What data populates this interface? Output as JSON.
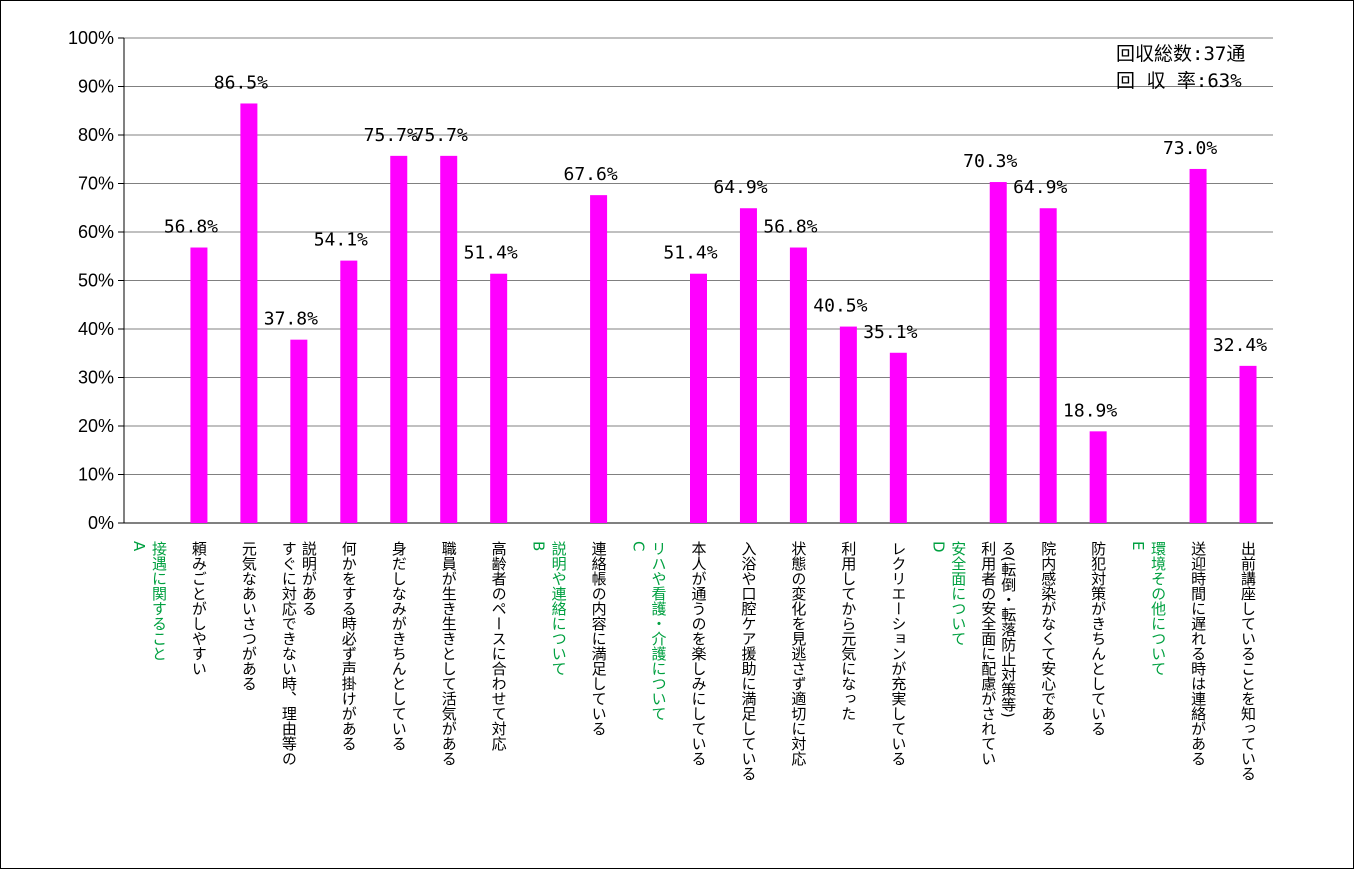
{
  "chart_data": {
    "type": "bar",
    "ylim": [
      0,
      100
    ],
    "yticks": [
      "0%",
      "10%",
      "20%",
      "30%",
      "40%",
      "50%",
      "60%",
      "70%",
      "80%",
      "90%",
      "100%"
    ],
    "grid": true,
    "bar_color": "#FF00FF",
    "section_label_color": "#00A040",
    "notes": [
      "回収総数:37通",
      "回 収 率:63%"
    ],
    "categories": [
      {
        "label": [
          "A",
          "接遇に関すること"
        ],
        "value": null,
        "data_label": "",
        "section": true
      },
      {
        "label": [
          "頼みごとがしやすい"
        ],
        "value": 56.8,
        "data_label": "56.8%"
      },
      {
        "label": [
          "元気なあいさつがある"
        ],
        "value": 86.5,
        "data_label": "86.5%"
      },
      {
        "label": [
          "すぐに対応できない時、理由等の",
          "説明がある"
        ],
        "value": 37.8,
        "data_label": "37.8%"
      },
      {
        "label": [
          "何かをする時必ず声掛けがある"
        ],
        "value": 54.1,
        "data_label": "54.1%"
      },
      {
        "label": [
          "身だしなみがきちんとしている"
        ],
        "value": 75.7,
        "data_label": "75.7%"
      },
      {
        "label": [
          "職員が生き生きとして活気がある"
        ],
        "value": 75.7,
        "data_label": "75.7%"
      },
      {
        "label": [
          "高齢者のペースに合わせて対応"
        ],
        "value": 51.4,
        "data_label": "51.4%"
      },
      {
        "label": [
          "B",
          "説明や連絡について"
        ],
        "value": null,
        "data_label": "",
        "section": true
      },
      {
        "label": [
          "連絡帳の内容に満足している"
        ],
        "value": 67.6,
        "data_label": "67.6%"
      },
      {
        "label": [
          "C",
          "リハや看護・介護について"
        ],
        "value": null,
        "data_label": "",
        "section": true
      },
      {
        "label": [
          "本人が通うのを楽しみにしている"
        ],
        "value": 51.4,
        "data_label": "51.4%"
      },
      {
        "label": [
          "入浴や口腔ケア援助に満足している"
        ],
        "value": 64.9,
        "data_label": "64.9%"
      },
      {
        "label": [
          "状態の変化を見逃さず適切に対応"
        ],
        "value": 56.8,
        "data_label": "56.8%"
      },
      {
        "label": [
          "利用してから元気になった"
        ],
        "value": 40.5,
        "data_label": "40.5%"
      },
      {
        "label": [
          "レクリエーションが充実している"
        ],
        "value": 35.1,
        "data_label": "35.1%"
      },
      {
        "label": [
          "D",
          "安全面について"
        ],
        "value": null,
        "data_label": "",
        "section": true
      },
      {
        "label": [
          "利用者の安全面に配慮がされてい",
          "る(転倒・転落防止対策等)"
        ],
        "value": 70.3,
        "data_label": "70.3%"
      },
      {
        "label": [
          "院内感染がなくて安心である"
        ],
        "value": 64.9,
        "data_label": "64.9%"
      },
      {
        "label": [
          "防犯対策がきちんとしている"
        ],
        "value": 18.9,
        "data_label": "18.9%"
      },
      {
        "label": [
          "E",
          "環境その他について"
        ],
        "value": null,
        "data_label": "",
        "section": true
      },
      {
        "label": [
          "送迎時間に遅れる時は連絡がある"
        ],
        "value": 73.0,
        "data_label": "73.0%"
      },
      {
        "label": [
          "出前講座していることを知っている"
        ],
        "value": 32.4,
        "data_label": "32.4%"
      }
    ]
  }
}
